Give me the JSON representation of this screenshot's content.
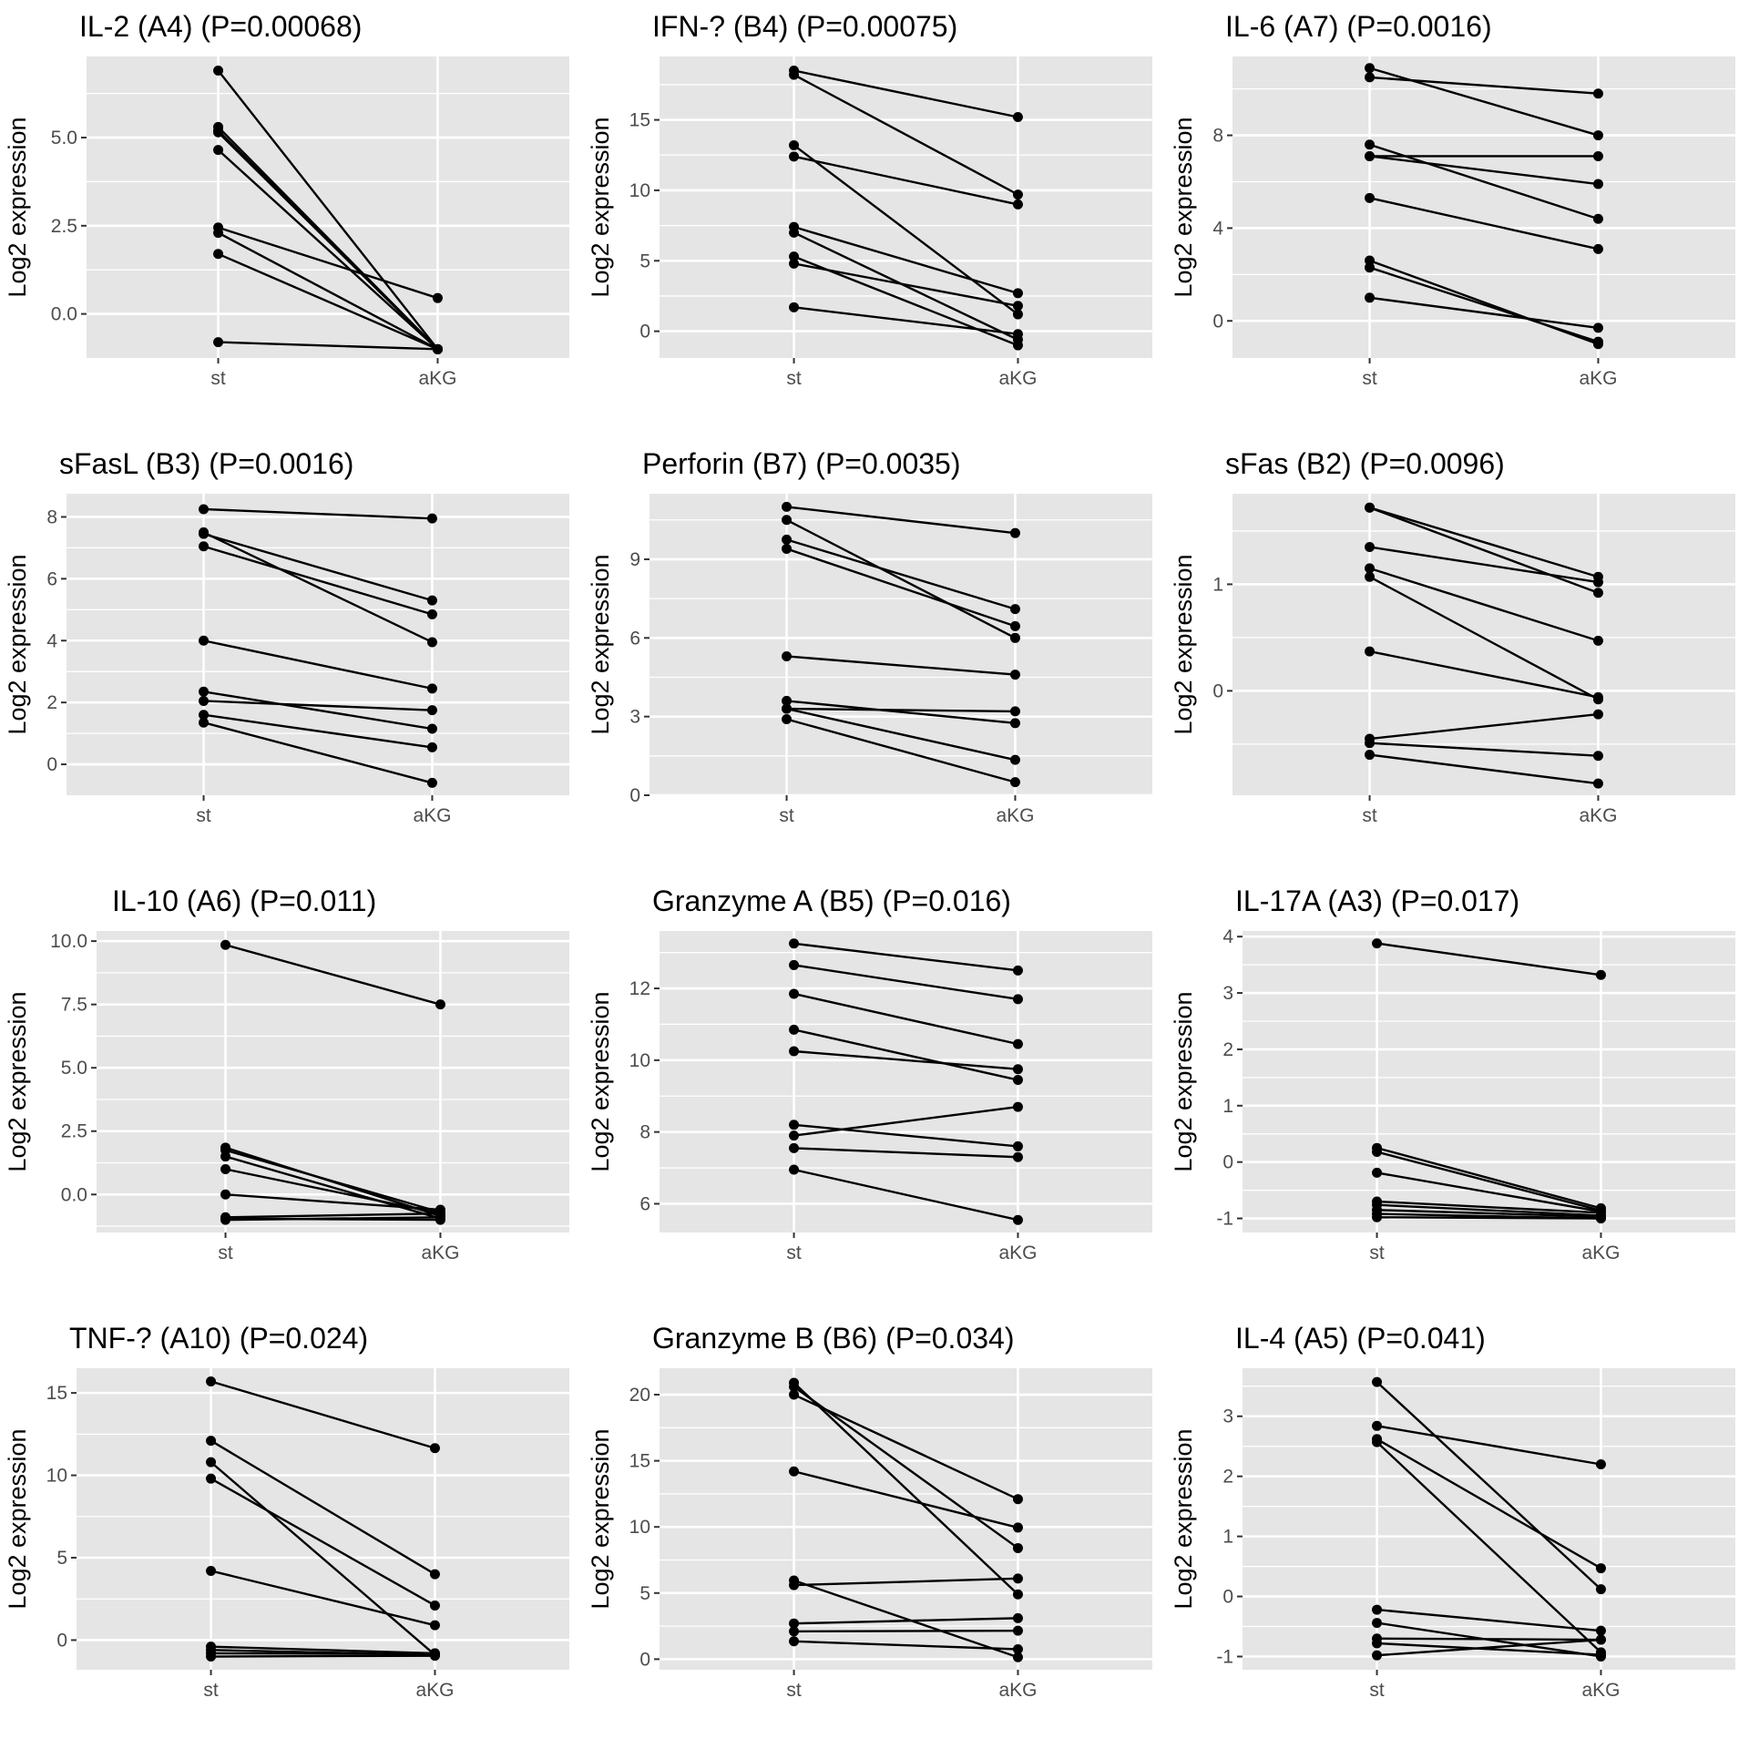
{
  "figure": {
    "layout": "3 columns x 4 rows of paired line plots",
    "colors": {
      "panel_bg": "#e5e5e5",
      "grid": "#ffffff",
      "line": "#000000",
      "point": "#000000",
      "tick_text": "#4d4d4d",
      "title_text": "#000000"
    }
  },
  "chart_data": [
    {
      "type": "line",
      "title": "IL-2 (A4) (P=0.00068)",
      "xlabel": "",
      "ylabel": "Log2 expression",
      "categories": [
        "st",
        "aKG"
      ],
      "ylim": [
        -1.25,
        7.3
      ],
      "yticks": [
        0.0,
        2.5,
        5.0
      ],
      "ytick_labels": [
        "0.0",
        "2.5",
        "5.0"
      ],
      "grid": true,
      "pairs": [
        [
          6.9,
          -1.0
        ],
        [
          5.3,
          -1.0
        ],
        [
          5.2,
          -1.0
        ],
        [
          5.15,
          -1.0
        ],
        [
          4.65,
          -1.0
        ],
        [
          2.45,
          0.45
        ],
        [
          2.3,
          -1.0
        ],
        [
          1.7,
          -1.0
        ],
        [
          -0.8,
          -1.0
        ]
      ]
    },
    {
      "type": "line",
      "title": "IFN-? (B4) (P=0.00075)",
      "xlabel": "",
      "ylabel": "Log2 expression",
      "categories": [
        "st",
        "aKG"
      ],
      "ylim": [
        -1.9,
        19.5
      ],
      "yticks": [
        0,
        5,
        10,
        15
      ],
      "ytick_labels": [
        "0",
        "5",
        "10",
        "15"
      ],
      "grid": true,
      "pairs": [
        [
          18.5,
          15.2
        ],
        [
          18.2,
          9.7
        ],
        [
          13.2,
          1.2
        ],
        [
          12.4,
          9.0
        ],
        [
          7.4,
          2.7
        ],
        [
          7.0,
          -0.6
        ],
        [
          5.3,
          -1.0
        ],
        [
          4.8,
          1.8
        ],
        [
          1.7,
          -0.2
        ]
      ]
    },
    {
      "type": "line",
      "title": "IL-6 (A7) (P=0.0016)",
      "xlabel": "",
      "ylabel": "Log2 expression",
      "categories": [
        "st",
        "aKG"
      ],
      "ylim": [
        -1.6,
        11.4
      ],
      "yticks": [
        0,
        4,
        8
      ],
      "ytick_labels": [
        "0",
        "4",
        "8"
      ],
      "grid": true,
      "pairs": [
        [
          10.9,
          8.0
        ],
        [
          10.5,
          9.8
        ],
        [
          7.6,
          4.4
        ],
        [
          7.1,
          7.1
        ],
        [
          7.1,
          5.9
        ],
        [
          5.3,
          3.1
        ],
        [
          2.6,
          -1.0
        ],
        [
          2.3,
          -0.9
        ],
        [
          1.0,
          -0.3
        ]
      ]
    },
    {
      "type": "line",
      "title": "sFasL (B3) (P=0.0016)",
      "xlabel": "",
      "ylabel": "Log2 expression",
      "categories": [
        "st",
        "aKG"
      ],
      "ylim": [
        -1.0,
        8.75
      ],
      "yticks": [
        0,
        2,
        4,
        6,
        8
      ],
      "ytick_labels": [
        "0",
        "2",
        "4",
        "6",
        "8"
      ],
      "grid": true,
      "pairs": [
        [
          8.25,
          7.95
        ],
        [
          7.5,
          3.95
        ],
        [
          7.45,
          5.3
        ],
        [
          7.05,
          4.85
        ],
        [
          4.0,
          2.45
        ],
        [
          2.35,
          1.15
        ],
        [
          2.05,
          1.75
        ],
        [
          1.6,
          0.55
        ],
        [
          1.35,
          -0.6
        ]
      ]
    },
    {
      "type": "line",
      "title": "Perforin (B7) (P=0.0035)",
      "xlabel": "",
      "ylabel": "Log2 expression",
      "categories": [
        "st",
        "aKG"
      ],
      "ylim": [
        0,
        11.5
      ],
      "yticks": [
        0,
        3,
        6,
        9
      ],
      "ytick_labels": [
        "0",
        "3",
        "6",
        "9"
      ],
      "grid": true,
      "pairs": [
        [
          11.0,
          10.0
        ],
        [
          10.5,
          6.0
        ],
        [
          9.75,
          7.1
        ],
        [
          9.4,
          6.45
        ],
        [
          5.3,
          4.6
        ],
        [
          3.6,
          2.75
        ],
        [
          3.3,
          3.2
        ],
        [
          3.3,
          1.35
        ],
        [
          2.9,
          0.5
        ]
      ]
    },
    {
      "type": "line",
      "title": "sFas (B2) (P=0.0096)",
      "xlabel": "",
      "ylabel": "Log2 expression",
      "categories": [
        "st",
        "aKG"
      ],
      "ylim": [
        -0.98,
        1.85
      ],
      "yticks": [
        0,
        1
      ],
      "ytick_labels": [
        "0",
        "1"
      ],
      "grid": true,
      "pairs": [
        [
          1.72,
          1.07
        ],
        [
          1.72,
          0.92
        ],
        [
          1.35,
          1.02
        ],
        [
          1.15,
          0.47
        ],
        [
          1.07,
          -0.08
        ],
        [
          0.37,
          -0.06
        ],
        [
          -0.45,
          -0.22
        ],
        [
          -0.49,
          -0.61
        ],
        [
          -0.6,
          -0.87
        ]
      ]
    },
    {
      "type": "line",
      "title": "IL-10 (A6) (P=0.011)",
      "xlabel": "",
      "ylabel": "Log2 expression",
      "categories": [
        "st",
        "aKG"
      ],
      "ylim": [
        -1.5,
        10.4
      ],
      "yticks": [
        0.0,
        2.5,
        5.0,
        7.5,
        10.0
      ],
      "ytick_labels": [
        "0.0",
        "2.5",
        "5.0",
        "7.5",
        "10.0"
      ],
      "grid": true,
      "pairs": [
        [
          9.85,
          7.5
        ],
        [
          1.85,
          -0.85
        ],
        [
          1.75,
          -0.7
        ],
        [
          1.5,
          -0.95
        ],
        [
          1.0,
          -0.75
        ],
        [
          0.0,
          -0.6
        ],
        [
          -0.9,
          -0.75
        ],
        [
          -0.95,
          -1.0
        ],
        [
          -1.0,
          -0.9
        ]
      ]
    },
    {
      "type": "line",
      "title": "Granzyme A (B5) (P=0.016)",
      "xlabel": "",
      "ylabel": "Log2 expression",
      "categories": [
        "st",
        "aKG"
      ],
      "ylim": [
        5.2,
        13.6
      ],
      "yticks": [
        6,
        8,
        10,
        12
      ],
      "ytick_labels": [
        "6",
        "8",
        "10",
        "12"
      ],
      "grid": true,
      "pairs": [
        [
          13.25,
          12.5
        ],
        [
          12.65,
          11.7
        ],
        [
          11.85,
          10.45
        ],
        [
          10.85,
          9.45
        ],
        [
          10.25,
          9.75
        ],
        [
          8.2,
          7.6
        ],
        [
          7.9,
          8.7
        ],
        [
          7.55,
          7.3
        ],
        [
          6.95,
          5.55
        ]
      ]
    },
    {
      "type": "line",
      "title": "IL-17A (A3) (P=0.017)",
      "xlabel": "",
      "ylabel": "Log2 expression",
      "categories": [
        "st",
        "aKG"
      ],
      "ylim": [
        -1.25,
        4.1
      ],
      "yticks": [
        -1,
        0,
        1,
        2,
        3,
        4
      ],
      "ytick_labels": [
        "-1",
        "0",
        "1",
        "2",
        "3",
        "4"
      ],
      "grid": true,
      "pairs": [
        [
          3.88,
          3.32
        ],
        [
          0.25,
          -0.82
        ],
        [
          0.18,
          -0.86
        ],
        [
          -0.19,
          -0.88
        ],
        [
          -0.7,
          -0.9
        ],
        [
          -0.76,
          -0.95
        ],
        [
          -0.85,
          -0.97
        ],
        [
          -0.92,
          -1.0
        ],
        [
          -0.98,
          -1.0
        ]
      ]
    },
    {
      "type": "line",
      "title": "TNF-? (A10) (P=0.024)",
      "xlabel": "",
      "ylabel": "Log2 expression",
      "categories": [
        "st",
        "aKG"
      ],
      "ylim": [
        -1.8,
        16.5
      ],
      "yticks": [
        0,
        5,
        10,
        15
      ],
      "ytick_labels": [
        "0",
        "5",
        "10",
        "15"
      ],
      "grid": true,
      "pairs": [
        [
          15.7,
          11.65
        ],
        [
          12.1,
          4.0
        ],
        [
          10.8,
          -0.9
        ],
        [
          9.8,
          2.1
        ],
        [
          4.2,
          0.9
        ],
        [
          -0.4,
          -0.8
        ],
        [
          -0.6,
          -0.9
        ],
        [
          -0.8,
          -0.85
        ],
        [
          -1.0,
          -0.95
        ]
      ]
    },
    {
      "type": "line",
      "title": "Granzyme B (B6) (P=0.034)",
      "xlabel": "",
      "ylabel": "Log2 expression",
      "categories": [
        "st",
        "aKG"
      ],
      "ylim": [
        -0.8,
        22.0
      ],
      "yticks": [
        0,
        5,
        10,
        15,
        20
      ],
      "ytick_labels": [
        "0",
        "5",
        "10",
        "15",
        "20"
      ],
      "grid": true,
      "pairs": [
        [
          20.9,
          4.9
        ],
        [
          20.6,
          8.4
        ],
        [
          20.0,
          12.1
        ],
        [
          14.2,
          9.95
        ],
        [
          5.95,
          0.15
        ],
        [
          5.6,
          6.1
        ],
        [
          2.7,
          3.1
        ],
        [
          2.1,
          2.15
        ],
        [
          1.35,
          0.75
        ]
      ]
    },
    {
      "type": "line",
      "title": "IL-4 (A5) (P=0.041)",
      "xlabel": "",
      "ylabel": "Log2 expression",
      "categories": [
        "st",
        "aKG"
      ],
      "ylim": [
        -1.22,
        3.8
      ],
      "yticks": [
        -1,
        0,
        1,
        2,
        3
      ],
      "ytick_labels": [
        "-1",
        "0",
        "1",
        "2",
        "3"
      ],
      "grid": true,
      "pairs": [
        [
          3.57,
          0.12
        ],
        [
          2.84,
          2.2
        ],
        [
          2.62,
          0.47
        ],
        [
          2.57,
          -0.93
        ],
        [
          -0.22,
          -0.57
        ],
        [
          -0.44,
          -1.0
        ],
        [
          -0.7,
          -0.72
        ],
        [
          -0.78,
          -0.97
        ],
        [
          -0.98,
          -0.72
        ]
      ]
    }
  ]
}
